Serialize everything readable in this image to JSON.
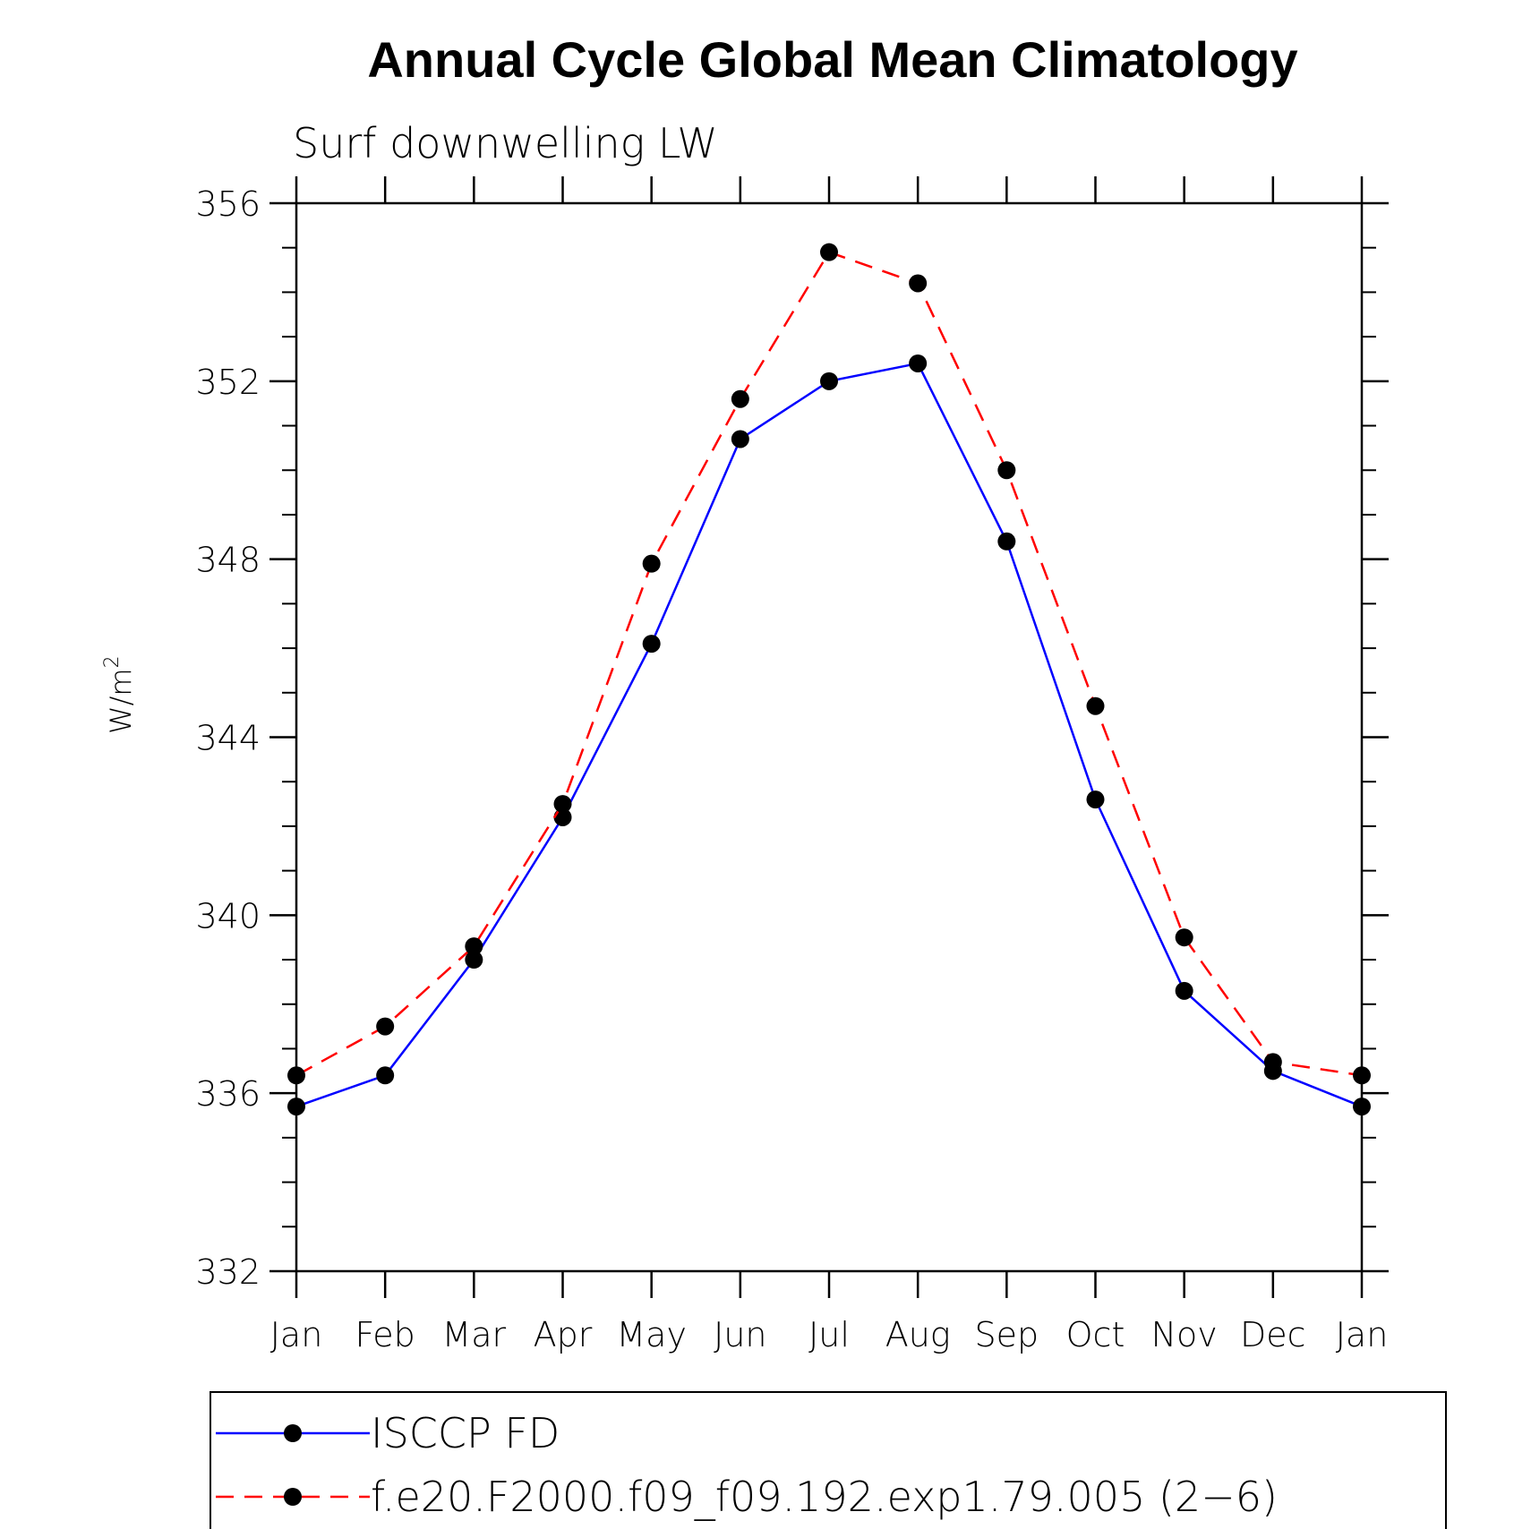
{
  "chart_data": {
    "type": "line",
    "title": "Annual Cycle Global Mean Climatology",
    "subtitle": "Surf downwelling LW",
    "ylabel": "W/m",
    "ylabel_superscript": "2",
    "xlabel": "",
    "categories": [
      "Jan",
      "Feb",
      "Mar",
      "Apr",
      "May",
      "Jun",
      "Jul",
      "Aug",
      "Sep",
      "Oct",
      "Nov",
      "Dec",
      "Jan"
    ],
    "ylim": [
      332,
      356
    ],
    "yticks": [
      332,
      336,
      340,
      344,
      348,
      352,
      356
    ],
    "yticks_labels": [
      "332",
      "336",
      "340",
      "344",
      "348",
      "352",
      "356"
    ],
    "series": [
      {
        "name": "ISCCP FD",
        "color": "#0000ff",
        "dash": "solid",
        "marker": "filled-circle",
        "values": [
          335.7,
          336.4,
          339.0,
          342.2,
          346.1,
          350.7,
          352.0,
          352.4,
          348.4,
          342.6,
          338.3,
          336.5,
          335.7
        ]
      },
      {
        "name": "f.e20.F2000.f09_f09.192.exp1.79.005 (2−6)",
        "color": "#ff0000",
        "dash": "dashed",
        "marker": "filled-circle",
        "values": [
          336.4,
          337.5,
          339.3,
          342.5,
          347.9,
          351.6,
          354.9,
          354.2,
          350.0,
          344.7,
          339.5,
          336.7,
          336.4
        ]
      }
    ],
    "legend": {
      "placement": "bottom",
      "entries": [
        "ISCCP FD",
        "f.e20.F2000.f09_f09.192.exp1.79.005 (2−6)"
      ]
    },
    "grid": false
  }
}
